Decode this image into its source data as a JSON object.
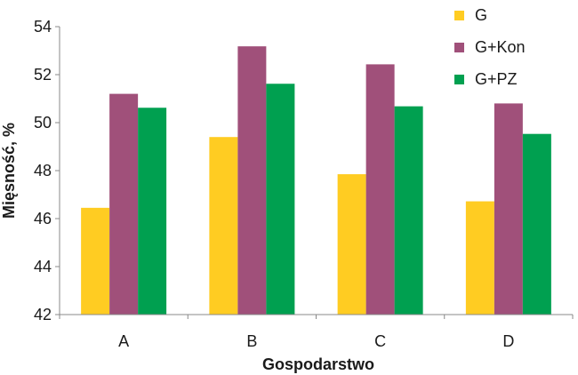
{
  "chart_data": {
    "type": "bar",
    "categories": [
      "A",
      "B",
      "C",
      "D"
    ],
    "series": [
      {
        "name": "G",
        "color": "#FFCC22",
        "values": [
          46.45,
          49.4,
          47.85,
          46.72
        ]
      },
      {
        "name": "G+Kon",
        "color": "#A0507A",
        "values": [
          51.2,
          53.18,
          52.43,
          50.8
        ]
      },
      {
        "name": "G+PZ",
        "color": "#00A050",
        "values": [
          50.62,
          51.62,
          50.68,
          49.53
        ]
      }
    ],
    "title": "",
    "xlabel": "Gospodarstwo",
    "ylabel": "Mięsność, %",
    "ylim": [
      42,
      54
    ],
    "yticks": [
      42,
      44,
      46,
      48,
      50,
      52,
      54
    ],
    "grid": false,
    "legend_position": "top-right"
  }
}
